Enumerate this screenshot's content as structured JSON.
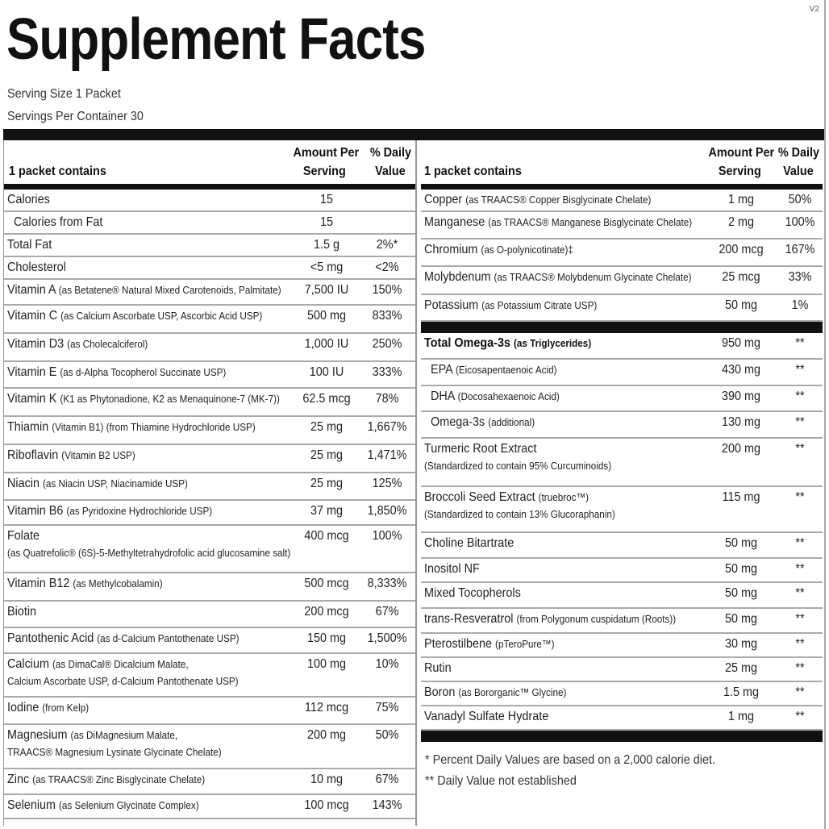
{
  "title": "Supplement Facts",
  "version": "V2",
  "serving_size": "Serving Size 1 Packet",
  "servings_per_container": "Servings Per Container 30",
  "header": {
    "contains": "1 packet contains",
    "amount_1": "Amount Per",
    "amount_2": "Serving",
    "dv_1": "% Daily",
    "dv_2": "Value"
  },
  "left_rows": [
    {
      "name": "Calories",
      "detail": "",
      "amount": "15",
      "dv": ""
    },
    {
      "name": "Calories from Fat",
      "detail": "",
      "amount": "15",
      "dv": "",
      "indent": true
    },
    {
      "name": "Total Fat",
      "detail": "",
      "amount": "1.5 g",
      "dv": "2%*"
    },
    {
      "name": "Cholesterol",
      "detail": "",
      "amount": "<5 mg",
      "dv": "<2%"
    },
    {
      "name": "Vitamin A",
      "detail": "(as Betatene® Natural Mixed Carotenoids, Palmitate)",
      "amount": "7,500 IU",
      "dv": "150%"
    },
    {
      "name": "Vitamin C",
      "detail": "(as Calcium Ascorbate USP, Ascorbic Acid USP)",
      "amount": "500 mg",
      "dv": "833%"
    },
    {
      "name": "Vitamin D3",
      "detail": "(as Cholecalciferol)",
      "amount": "1,000 IU",
      "dv": "250%"
    },
    {
      "name": "Vitamin E",
      "detail": "(as d-Alpha Tocopherol Succinate USP)",
      "amount": "100 IU",
      "dv": "333%"
    },
    {
      "name": "Vitamin K",
      "detail": "(K1 as Phytonadione, K2 as Menaquinone-7 (MK-7))",
      "amount": "62.5 mcg",
      "dv": "78%"
    },
    {
      "name": "Thiamin",
      "detail": "(Vitamin B1) (from Thiamine Hydrochloride USP)",
      "amount": "25 mg",
      "dv": "1,667%"
    },
    {
      "name": "Riboflavin",
      "detail": "(Vitamin B2 USP)",
      "amount": "25 mg",
      "dv": "1,471%"
    },
    {
      "name": "Niacin",
      "detail": "(as Niacin USP, Niacinamide USP)",
      "amount": "25 mg",
      "dv": "125%"
    },
    {
      "name": "Vitamin B6",
      "detail": "(as Pyridoxine Hydrochloride USP)",
      "amount": "37 mg",
      "dv": "1,850%"
    },
    {
      "name": "Folate",
      "detail": "",
      "line2": "(as Quatrefolic® (6S)-5-Methyltetrahydrofolic acid glucosamine salt)",
      "amount": "400 mcg",
      "dv": "100%"
    },
    {
      "name": "Vitamin B12",
      "detail": "(as Methylcobalamin)",
      "amount": "500 mcg",
      "dv": "8,333%"
    },
    {
      "name": "Biotin",
      "detail": "",
      "amount": "200 mcg",
      "dv": "67%"
    },
    {
      "name": "Pantothenic Acid",
      "detail": "(as d-Calcium Pantothenate USP)",
      "amount": "150 mg",
      "dv": "1,500%"
    },
    {
      "name": "Calcium",
      "detail": "(as DimaCal® Dicalcium Malate,",
      "line2": "Calcium Ascorbate USP, d-Calcium Pantothenate USP)",
      "amount": "100 mg",
      "dv": "10%"
    },
    {
      "name": "Iodine",
      "detail": "(from Kelp)",
      "amount": "112 mcg",
      "dv": "75%"
    },
    {
      "name": "Magnesium",
      "detail": "(as DiMagnesium Malate,",
      "line2": "TRAACS® Magnesium Lysinate Glycinate Chelate)",
      "amount": "200 mg",
      "dv": "50%"
    },
    {
      "name": "Zinc",
      "detail": "(as TRAACS® Zinc Bisglycinate Chelate)",
      "amount": "10 mg",
      "dv": "67%"
    },
    {
      "name": "Selenium",
      "detail": "(as Selenium Glycinate Complex)",
      "amount": "100 mcg",
      "dv": "143%"
    }
  ],
  "right_rows": [
    {
      "name": "Copper",
      "detail": "(as TRAACS® Copper Bisglycinate Chelate)",
      "amount": "1 mg",
      "dv": "50%"
    },
    {
      "name": "Manganese",
      "detail": "(as TRAACS® Manganese Bisglycinate Chelate)",
      "amount": "2 mg",
      "dv": "100%"
    },
    {
      "name": "Chromium",
      "detail": "(as O-polynicotinate)‡",
      "amount": "200 mcg",
      "dv": "167%"
    },
    {
      "name": "Molybdenum",
      "detail": "(as TRAACS® Molybdenum Glycinate Chelate)",
      "amount": "25 mcg",
      "dv": "33%"
    },
    {
      "name": "Potassium",
      "detail": "(as Potassium Citrate USP)",
      "amount": "50 mg",
      "dv": "1%"
    },
    {
      "separator": true
    },
    {
      "name": "Total Omega-3s",
      "detail": "(as Triglycerides)",
      "amount": "950 mg",
      "dv": "**",
      "bold": true
    },
    {
      "name": "EPA",
      "detail": "(Eicosapentaenoic Acid)",
      "amount": "430 mg",
      "dv": "**",
      "indent": true
    },
    {
      "name": "DHA",
      "detail": "(Docosahexaenoic Acid)",
      "amount": "390 mg",
      "dv": "**",
      "indent": true
    },
    {
      "name": "Omega-3s",
      "detail": "(additional)",
      "amount": "130 mg",
      "dv": "**",
      "indent": true
    },
    {
      "name": "Turmeric Root Extract",
      "detail": "",
      "line2": "(Standardized to contain 95% Curcuminoids)",
      "amount": "200 mg",
      "dv": "**"
    },
    {
      "name": "Broccoli Seed Extract",
      "detail": "(truebroc™)",
      "line2": "(Standardized to contain 13% Glucoraphanin)",
      "amount": "115 mg",
      "dv": "**"
    },
    {
      "name": "Choline Bitartrate",
      "detail": "",
      "amount": "50 mg",
      "dv": "**"
    },
    {
      "name": "Inositol NF",
      "detail": "",
      "amount": "50 mg",
      "dv": "**"
    },
    {
      "name": "Mixed Tocopherols",
      "detail": "",
      "amount": "50 mg",
      "dv": "**"
    },
    {
      "name": "trans-Resveratrol",
      "detail": "(from Polygonum cuspidatum (Roots))",
      "amount": "50 mg",
      "dv": "**"
    },
    {
      "name": "Pterostilbene",
      "detail": "(pTeroPure™)",
      "amount": "30 mg",
      "dv": "**"
    },
    {
      "name": "Rutin",
      "detail": "",
      "amount": "25 mg",
      "dv": "**"
    },
    {
      "name": "Boron",
      "detail": "(as Bororganic™ Glycine)",
      "amount": "1.5 mg",
      "dv": "**"
    },
    {
      "name": "Vanadyl Sulfate Hydrate",
      "detail": "",
      "amount": "1 mg",
      "dv": "**"
    },
    {
      "separator": true
    }
  ],
  "footnotes": [
    "*  Percent Daily Values are based on a 2,000 calorie diet.",
    "**  Daily Value not established"
  ]
}
